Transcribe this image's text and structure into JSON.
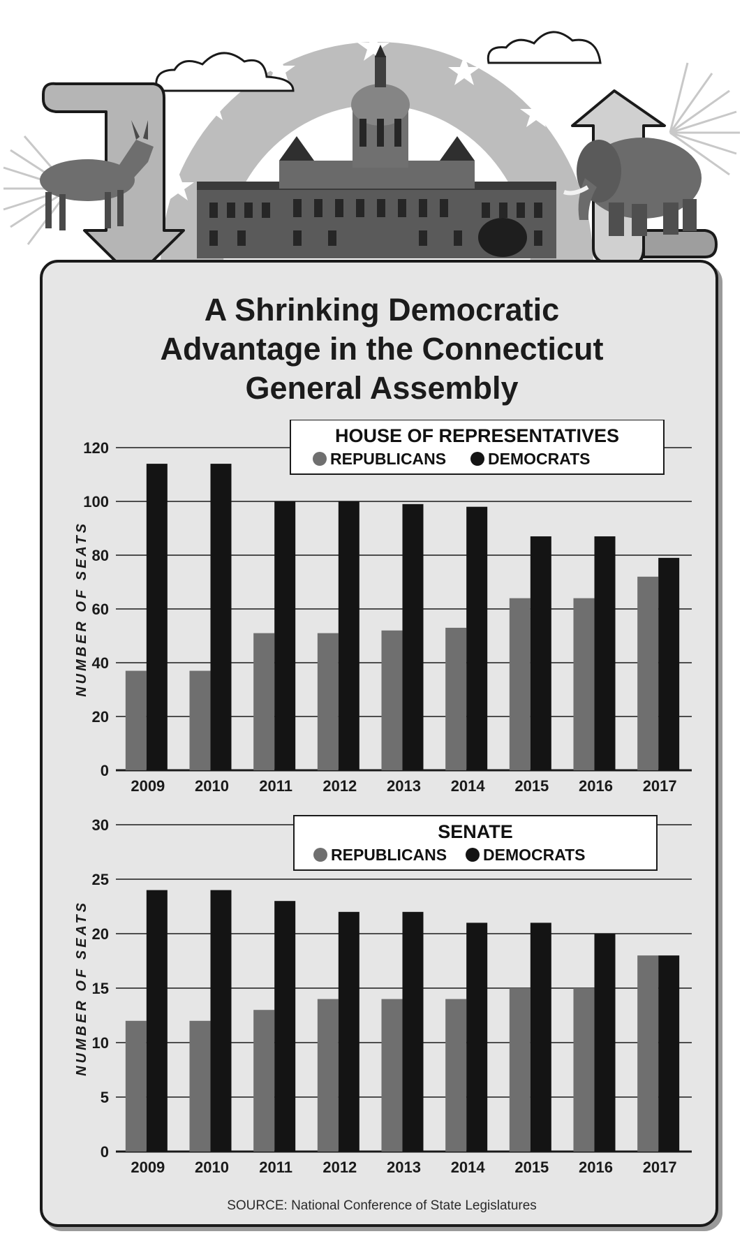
{
  "title_lines": [
    "A Shrinking Democratic",
    "Advantage in the Connecticut",
    "General Assembly"
  ],
  "source": "SOURCE: National Conference of State Legislatures",
  "colors": {
    "republicans": "#6f6f6f",
    "democrats": "#141414",
    "panel_background": "#e6e6e6",
    "gridline": "#1a1a1a"
  },
  "icons": [
    "donkey-icon",
    "elephant-icon",
    "capitol-building-icon",
    "down-arrow-icon",
    "up-arrow-icon",
    "star-icon",
    "cloud-icon"
  ],
  "chart_data": [
    {
      "type": "bar",
      "title": "HOUSE OF REPRESENTATIVES",
      "ylabel": "NUMBER OF SEATS",
      "xlabel": "",
      "ylim": [
        0,
        120
      ],
      "yticks": [
        0,
        20,
        40,
        60,
        80,
        100,
        120
      ],
      "grid": true,
      "legend_position": "top-right",
      "categories": [
        "2009",
        "2010",
        "2011",
        "2012",
        "2013",
        "2014",
        "2015",
        "2016",
        "2017"
      ],
      "series": [
        {
          "name": "REPUBLICANS",
          "values": [
            37,
            37,
            51,
            51,
            52,
            53,
            64,
            64,
            72
          ]
        },
        {
          "name": "DEMOCRATS",
          "values": [
            114,
            114,
            100,
            100,
            99,
            98,
            87,
            87,
            79
          ]
        }
      ]
    },
    {
      "type": "bar",
      "title": "SENATE",
      "ylabel": "NUMBER OF SEATS",
      "xlabel": "",
      "ylim": [
        0,
        30
      ],
      "yticks": [
        0,
        5,
        10,
        15,
        20,
        25,
        30
      ],
      "grid": true,
      "legend_position": "top-right",
      "categories": [
        "2009",
        "2010",
        "2011",
        "2012",
        "2013",
        "2014",
        "2015",
        "2016",
        "2017"
      ],
      "series": [
        {
          "name": "REPUBLICANS",
          "values": [
            12,
            12,
            13,
            14,
            14,
            14,
            15,
            15,
            18
          ]
        },
        {
          "name": "DEMOCRATS",
          "values": [
            24,
            24,
            23,
            22,
            22,
            21,
            21,
            20,
            18
          ]
        }
      ]
    }
  ]
}
